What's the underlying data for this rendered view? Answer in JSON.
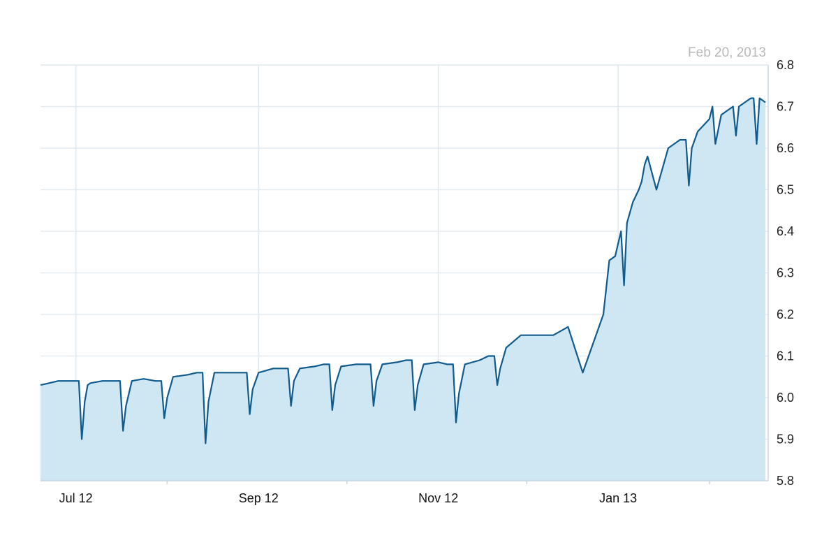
{
  "colors": {
    "line": "#0f5b8e",
    "area": "#cfe7f2",
    "grid": "#e4ebf0",
    "background": "#ffffff"
  },
  "chart_data": {
    "type": "area",
    "date_label": "Feb 20, 2013",
    "xlabel": "",
    "ylabel": "",
    "x_axis_labels": [
      "Jul 12",
      "Sep 12",
      "Nov 12",
      "Jan 13"
    ],
    "y_axis_labels": [
      "6.8",
      "6.7",
      "6.6",
      "6.5",
      "6.4",
      "6.3",
      "6.2",
      "6.1",
      "6.0",
      "5.9",
      "5.8"
    ],
    "ylim": [
      5.8,
      6.8
    ],
    "xlim": [
      "2012-06-19",
      "2013-02-20"
    ],
    "y_axis_position": "right",
    "grid": true,
    "series": [
      {
        "x": [
          "2012-06-19",
          "2012-06-22",
          "2012-06-25",
          "2012-06-28",
          "2012-07-02",
          "2012-07-03",
          "2012-07-04",
          "2012-07-05",
          "2012-07-06",
          "2012-07-10",
          "2012-07-13",
          "2012-07-16",
          "2012-07-17",
          "2012-07-18",
          "2012-07-20",
          "2012-07-24",
          "2012-07-28",
          "2012-07-30",
          "2012-07-31",
          "2012-08-01",
          "2012-08-03",
          "2012-08-08",
          "2012-08-11",
          "2012-08-13",
          "2012-08-14",
          "2012-08-15",
          "2012-08-17",
          "2012-08-22",
          "2012-08-25",
          "2012-08-28",
          "2012-08-29",
          "2012-08-30",
          "2012-09-01",
          "2012-09-06",
          "2012-09-09",
          "2012-09-11",
          "2012-09-12",
          "2012-09-13",
          "2012-09-15",
          "2012-09-20",
          "2012-09-23",
          "2012-09-25",
          "2012-09-26",
          "2012-09-27",
          "2012-09-29",
          "2012-10-04",
          "2012-10-07",
          "2012-10-09",
          "2012-10-10",
          "2012-10-11",
          "2012-10-13",
          "2012-10-18",
          "2012-10-21",
          "2012-10-23",
          "2012-10-24",
          "2012-10-25",
          "2012-10-27",
          "2012-11-01",
          "2012-11-04",
          "2012-11-06",
          "2012-11-07",
          "2012-11-08",
          "2012-11-10",
          "2012-11-15",
          "2012-11-18",
          "2012-11-20",
          "2012-11-21",
          "2012-11-22",
          "2012-11-24",
          "2012-11-29",
          "2012-12-02",
          "2012-12-05",
          "2012-12-07",
          "2012-12-10",
          "2012-12-15",
          "2012-12-20",
          "2012-12-27",
          "2012-12-29",
          "2012-12-31",
          "2013-01-01",
          "2013-01-02",
          "2013-01-03",
          "2013-01-04",
          "2013-01-06",
          "2013-01-08",
          "2013-01-09",
          "2013-01-10",
          "2013-01-11",
          "2013-01-14",
          "2013-01-18",
          "2013-01-22",
          "2013-01-24",
          "2013-01-25",
          "2013-01-26",
          "2013-01-28",
          "2013-02-01",
          "2013-02-02",
          "2013-02-03",
          "2013-02-05",
          "2013-02-07",
          "2013-02-09",
          "2013-02-10",
          "2013-02-11",
          "2013-02-13",
          "2013-02-15",
          "2013-02-16",
          "2013-02-17",
          "2013-02-18",
          "2013-02-20"
        ],
        "values": [
          6.03,
          6.035,
          6.04,
          6.04,
          6.04,
          5.9,
          5.99,
          6.03,
          6.035,
          6.04,
          6.04,
          6.04,
          5.92,
          5.98,
          6.04,
          6.045,
          6.04,
          6.04,
          5.95,
          6.0,
          6.05,
          6.055,
          6.06,
          6.06,
          5.89,
          5.99,
          6.06,
          6.06,
          6.06,
          6.06,
          5.96,
          6.02,
          6.06,
          6.07,
          6.07,
          6.07,
          5.98,
          6.04,
          6.07,
          6.075,
          6.08,
          6.08,
          5.97,
          6.03,
          6.075,
          6.08,
          6.08,
          6.08,
          5.98,
          6.04,
          6.08,
          6.085,
          6.09,
          6.09,
          5.97,
          6.03,
          6.08,
          6.085,
          6.08,
          6.08,
          5.94,
          6.01,
          6.08,
          6.09,
          6.1,
          6.1,
          6.03,
          6.07,
          6.12,
          6.15,
          6.15,
          6.15,
          6.15,
          6.15,
          6.17,
          6.06,
          6.2,
          6.33,
          6.34,
          6.37,
          6.4,
          6.27,
          6.42,
          6.47,
          6.5,
          6.52,
          6.56,
          6.58,
          6.5,
          6.6,
          6.62,
          6.62,
          6.51,
          6.6,
          6.64,
          6.67,
          6.7,
          6.61,
          6.68,
          6.69,
          6.7,
          6.63,
          6.7,
          6.71,
          6.72,
          6.72,
          6.61,
          6.72,
          6.71
        ]
      }
    ]
  }
}
